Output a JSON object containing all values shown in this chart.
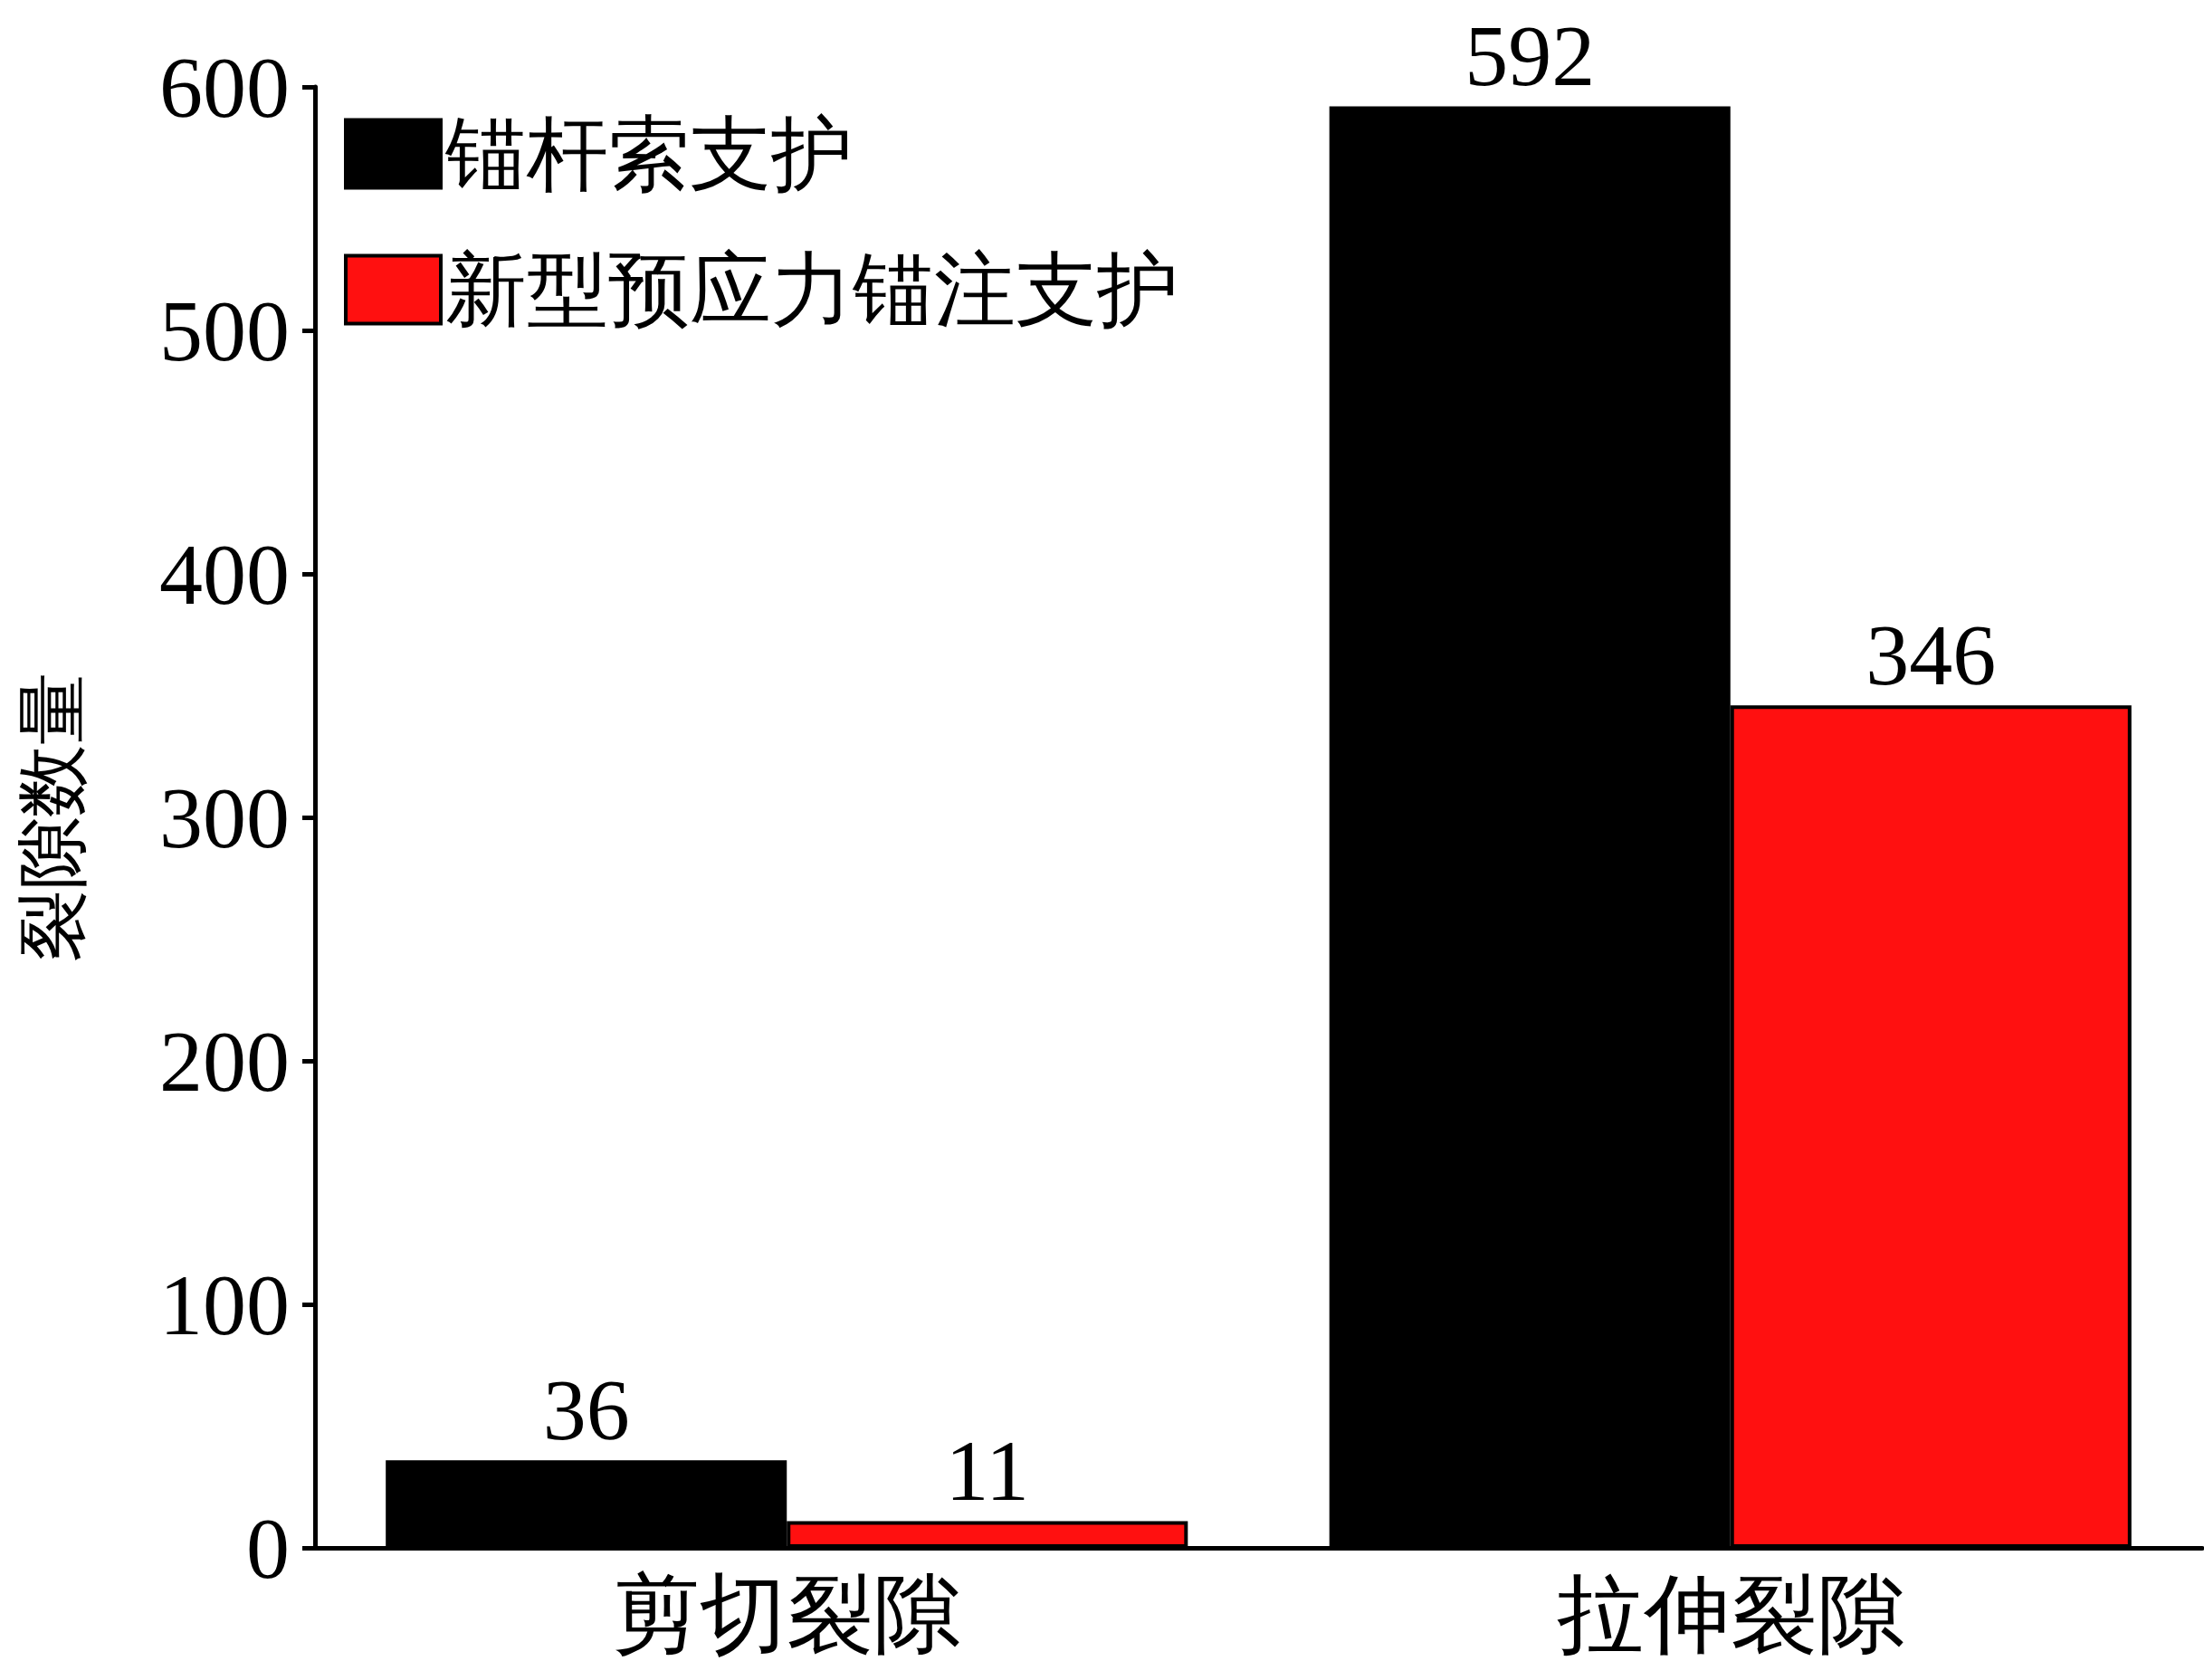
{
  "chart_data": {
    "type": "bar",
    "ylabel": "裂隙数量",
    "categories": [
      "剪切裂隙",
      "拉伸裂隙"
    ],
    "series": [
      {
        "name": "锚杆索支护",
        "color": "#000000",
        "values": [
          36,
          592
        ]
      },
      {
        "name": "新型预应力锚注支护",
        "color": "#ff1010",
        "values": [
          11,
          346
        ]
      }
    ],
    "ylim": [
      0,
      600
    ],
    "yticks": [
      0,
      100,
      200,
      300,
      400,
      500,
      600
    ],
    "data_labels": true,
    "legend": "top left",
    "grid": false
  }
}
